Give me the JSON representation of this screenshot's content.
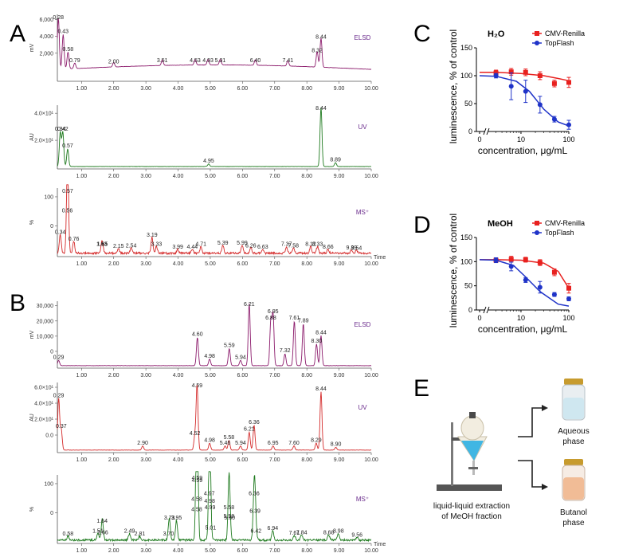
{
  "panels": {
    "a_label": "A",
    "b_label": "B",
    "c_label": "C",
    "d_label": "D",
    "e_label": "E"
  },
  "chart_data": [
    {
      "id": "A-ELSD",
      "type": "line",
      "panel": "A",
      "detector": "ELSD",
      "color": "#8b1a6b",
      "ylabel": "mV",
      "yticks": [
        "2,000",
        "4,000",
        "6,000"
      ],
      "xlim": [
        0,
        10
      ],
      "xticks": [
        "1.00",
        "2.00",
        "3.00",
        "4.00",
        "5.00",
        "6.00",
        "7.00",
        "8.00",
        "9.00",
        "10.00"
      ],
      "peaks": [
        {
          "t": "0.28",
          "rt": 0.28,
          "h": 0.92
        },
        {
          "t": "0.43",
          "rt": 0.43,
          "h": 0.62
        },
        {
          "t": "0.58",
          "rt": 0.58,
          "h": 0.3
        },
        {
          "t": "0.79",
          "rt": 0.79,
          "h": 0.1
        },
        {
          "t": "2.00",
          "rt": 2.0,
          "h": 0.08
        },
        {
          "t": "3.51",
          "rt": 3.51,
          "h": 0.1
        },
        {
          "t": "4.53",
          "rt": 4.53,
          "h": 0.1
        },
        {
          "t": "4.93",
          "rt": 4.93,
          "h": 0.1
        },
        {
          "t": "5.31",
          "rt": 5.31,
          "h": 0.1
        },
        {
          "t": "6.40",
          "rt": 6.4,
          "h": 0.1
        },
        {
          "t": "7.41",
          "rt": 7.41,
          "h": 0.1
        },
        {
          "t": "8.32",
          "rt": 8.32,
          "h": 0.28
        },
        {
          "t": "8.44",
          "rt": 8.44,
          "h": 0.52
        }
      ]
    },
    {
      "id": "A-UV",
      "type": "line",
      "panel": "A",
      "detector": "UV",
      "color": "#1e7a1e",
      "ylabel": "AU",
      "yticks": [
        "2.0×10¹",
        "4.0×10¹"
      ],
      "xlim": [
        0,
        10
      ],
      "xticks": [
        "1.00",
        "2.00",
        "3.00",
        "4.00",
        "5.00",
        "6.00",
        "7.00",
        "8.00",
        "9.00",
        "10.00"
      ],
      "peaks": [
        {
          "t": "0.34",
          "rt": 0.34,
          "h": 0.55
        },
        {
          "t": "0.42",
          "rt": 0.42,
          "h": 0.55
        },
        {
          "t": "0.57",
          "rt": 0.57,
          "h": 0.28
        },
        {
          "t": "4.95",
          "rt": 4.95,
          "h": 0.04
        },
        {
          "t": "8.44",
          "rt": 8.44,
          "h": 0.95
        },
        {
          "t": "8.89",
          "rt": 8.89,
          "h": 0.06
        }
      ]
    },
    {
      "id": "A-MS",
      "type": "line",
      "panel": "A",
      "detector": "MS⁺",
      "color": "#d42a2a",
      "ylabel": "%",
      "yticks": [
        "0",
        "100"
      ],
      "xlim": [
        0,
        10
      ],
      "xunit": "Time",
      "xticks": [
        "1.00",
        "2.00",
        "3.00",
        "4.00",
        "5.00",
        "6.00",
        "7.00",
        "8.00",
        "9.00",
        "10.00"
      ],
      "peaks": [
        {
          "t": "0.34",
          "rt": 0.34,
          "h": 0.28
        },
        {
          "t": "0.56",
          "rt": 0.56,
          "h": 0.6
        },
        {
          "t": "0.57",
          "rt": 0.57,
          "h": 0.95
        },
        {
          "t": "0.76",
          "rt": 0.76,
          "h": 0.18
        },
        {
          "t": "1.63",
          "rt": 1.63,
          "h": 0.1
        },
        {
          "t": "1.65",
          "rt": 1.65,
          "h": 0.1
        },
        {
          "t": "2.15",
          "rt": 2.15,
          "h": 0.07
        },
        {
          "t": "2.54",
          "rt": 2.54,
          "h": 0.08
        },
        {
          "t": "3.19",
          "rt": 3.19,
          "h": 0.24
        },
        {
          "t": "3.33",
          "rt": 3.33,
          "h": 0.1
        },
        {
          "t": "3.99",
          "rt": 3.99,
          "h": 0.06
        },
        {
          "t": "4.44",
          "rt": 4.44,
          "h": 0.06
        },
        {
          "t": "4.71",
          "rt": 4.71,
          "h": 0.1
        },
        {
          "t": "5.39",
          "rt": 5.39,
          "h": 0.12
        },
        {
          "t": "5.99",
          "rt": 5.99,
          "h": 0.12
        },
        {
          "t": "6.26",
          "rt": 6.26,
          "h": 0.08
        },
        {
          "t": "6.63",
          "rt": 6.63,
          "h": 0.06
        },
        {
          "t": "7.37",
          "rt": 7.37,
          "h": 0.1
        },
        {
          "t": "7.58",
          "rt": 7.58,
          "h": 0.08
        },
        {
          "t": "8.12",
          "rt": 8.12,
          "h": 0.1
        },
        {
          "t": "8.33",
          "rt": 8.33,
          "h": 0.1
        },
        {
          "t": "8.66",
          "rt": 8.66,
          "h": 0.06
        },
        {
          "t": "9.39",
          "rt": 9.39,
          "h": 0.05
        },
        {
          "t": "9.54",
          "rt": 9.54,
          "h": 0.04
        }
      ]
    },
    {
      "id": "B-ELSD",
      "type": "line",
      "panel": "B",
      "detector": "ELSD",
      "color": "#8b1a6b",
      "ylabel": "mV",
      "yticks": [
        "0",
        "10,000",
        "20,000",
        "30,000"
      ],
      "xlim": [
        0,
        10
      ],
      "xticks": [
        "1.00",
        "2.00",
        "3.00",
        "4.00",
        "5.00",
        "6.00",
        "7.00",
        "8.00",
        "9.00",
        "10.00"
      ],
      "peaks": [
        {
          "t": "0.29",
          "rt": 0.29,
          "h": 0.08
        },
        {
          "t": "4.60",
          "rt": 4.6,
          "h": 0.43
        },
        {
          "t": "4.98",
          "rt": 4.98,
          "h": 0.1
        },
        {
          "t": "5.59",
          "rt": 5.59,
          "h": 0.26
        },
        {
          "t": "5.94",
          "rt": 5.94,
          "h": 0.08
        },
        {
          "t": "6.21",
          "rt": 6.21,
          "h": 0.95
        },
        {
          "t": "6.88",
          "rt": 6.88,
          "h": 0.68
        },
        {
          "t": "6.95",
          "rt": 6.95,
          "h": 0.78
        },
        {
          "t": "7.32",
          "rt": 7.32,
          "h": 0.18
        },
        {
          "t": "7.61",
          "rt": 7.61,
          "h": 0.68
        },
        {
          "t": "7.89",
          "rt": 7.89,
          "h": 0.64
        },
        {
          "t": "8.30",
          "rt": 8.3,
          "h": 0.33
        },
        {
          "t": "8.44",
          "rt": 8.44,
          "h": 0.46
        }
      ]
    },
    {
      "id": "B-UV",
      "type": "line",
      "panel": "B",
      "detector": "UV",
      "color": "#d42a2a",
      "ylabel": "AU",
      "yticks": [
        "0.0",
        "2.0×10¹",
        "4.0×10¹",
        "6.0×10¹"
      ],
      "xlim": [
        0,
        10
      ],
      "xticks": [
        "1.00",
        "2.00",
        "3.00",
        "4.00",
        "5.00",
        "6.00",
        "7.00",
        "8.00",
        "9.00",
        "10.00"
      ],
      "peaks": [
        {
          "t": "0.29",
          "rt": 0.29,
          "h": 0.75
        },
        {
          "t": "0.37",
          "rt": 0.37,
          "h": 0.3
        },
        {
          "t": "2.90",
          "rt": 2.9,
          "h": 0.06
        },
        {
          "t": "4.52",
          "rt": 4.52,
          "h": 0.2
        },
        {
          "t": "4.59",
          "rt": 4.59,
          "h": 0.95
        },
        {
          "t": "4.98",
          "rt": 4.98,
          "h": 0.1
        },
        {
          "t": "5.46",
          "rt": 5.46,
          "h": 0.06
        },
        {
          "t": "5.58",
          "rt": 5.58,
          "h": 0.14
        },
        {
          "t": "5.94",
          "rt": 5.94,
          "h": 0.06
        },
        {
          "t": "6.21",
          "rt": 6.21,
          "h": 0.26
        },
        {
          "t": "6.36",
          "rt": 6.36,
          "h": 0.36
        },
        {
          "t": "6.95",
          "rt": 6.95,
          "h": 0.06
        },
        {
          "t": "7.60",
          "rt": 7.6,
          "h": 0.06
        },
        {
          "t": "8.29",
          "rt": 8.29,
          "h": 0.1
        },
        {
          "t": "8.44",
          "rt": 8.44,
          "h": 0.85
        },
        {
          "t": "8.90",
          "rt": 8.9,
          "h": 0.04
        }
      ]
    },
    {
      "id": "B-MS",
      "type": "line",
      "panel": "B",
      "detector": "MS⁺",
      "color": "#1e7a1e",
      "ylabel": "%",
      "yticks": [
        "0",
        "100"
      ],
      "xlim": [
        0,
        10
      ],
      "xunit": "Time",
      "xticks": [
        "1.00",
        "2.00",
        "3.00",
        "4.00",
        "5.00",
        "6.00",
        "7.00",
        "8.00",
        "9.00",
        "10.00"
      ],
      "peaks": [
        {
          "t": "0.58",
          "rt": 0.58,
          "h": 0.06
        },
        {
          "t": "1.51",
          "rt": 1.51,
          "h": 0.1
        },
        {
          "t": "1.64",
          "rt": 1.64,
          "h": 0.25
        },
        {
          "t": "1.66",
          "rt": 1.66,
          "h": 0.08
        },
        {
          "t": "2.49",
          "rt": 2.49,
          "h": 0.1
        },
        {
          "t": "2.81",
          "rt": 2.81,
          "h": 0.06
        },
        {
          "t": "3.70",
          "rt": 3.7,
          "h": 0.06
        },
        {
          "t": "3.73",
          "rt": 3.73,
          "h": 0.3
        },
        {
          "t": "3.95",
          "rt": 3.95,
          "h": 0.3
        },
        {
          "t": "4.58",
          "rt": 4.58,
          "h": 0.42
        },
        {
          "t": "4.58",
          "rt": 4.58,
          "h": 0.58
        },
        {
          "t": "4.59",
          "rt": 4.59,
          "h": 0.95
        },
        {
          "t": "4.59",
          "rt": 4.59,
          "h": 0.86
        },
        {
          "t": "4.97",
          "rt": 4.97,
          "h": 0.66
        },
        {
          "t": "4.98",
          "rt": 4.98,
          "h": 0.55
        },
        {
          "t": "4.99",
          "rt": 4.99,
          "h": 0.45
        },
        {
          "t": "5.01",
          "rt": 5.01,
          "h": 0.15
        },
        {
          "t": "5.58",
          "rt": 5.58,
          "h": 0.32
        },
        {
          "t": "5.58",
          "rt": 5.58,
          "h": 0.45
        },
        {
          "t": "5.60",
          "rt": 5.6,
          "h": 0.3
        },
        {
          "t": "6.36",
          "rt": 6.36,
          "h": 0.66
        },
        {
          "t": "6.39",
          "rt": 6.39,
          "h": 0.4
        },
        {
          "t": "6.42",
          "rt": 6.42,
          "h": 0.1
        },
        {
          "t": "6.94",
          "rt": 6.94,
          "h": 0.14
        },
        {
          "t": "7.61",
          "rt": 7.61,
          "h": 0.07
        },
        {
          "t": "7.84",
          "rt": 7.84,
          "h": 0.08
        },
        {
          "t": "8.68",
          "rt": 8.68,
          "h": 0.08
        },
        {
          "t": "8.98",
          "rt": 8.98,
          "h": 0.1
        },
        {
          "t": "9.56",
          "rt": 9.56,
          "h": 0.04
        }
      ]
    },
    {
      "id": "C",
      "type": "scatter",
      "panel": "C",
      "title": "H₂O",
      "xlabel": "concentration, μg/mL",
      "ylabel": "luminescence, % of control",
      "xscale": "log",
      "xticks": [
        "0",
        "10",
        "100"
      ],
      "yticks": [
        "0",
        "50",
        "100",
        "150"
      ],
      "ylim": [
        0,
        150
      ],
      "series": [
        {
          "name": "CMV-Renilla",
          "color": "#e8211f",
          "marker": "square",
          "x": [
            3,
            6.25,
            12.5,
            25,
            50,
            100
          ],
          "y": [
            105,
            107,
            106,
            100,
            86,
            88
          ],
          "err": [
            5,
            6,
            6,
            7,
            6,
            9
          ],
          "fit": [
            [
              0,
              106
            ],
            [
              3,
              106
            ],
            [
              10,
              104
            ],
            [
              30,
              100
            ],
            [
              60,
              95
            ],
            [
              100,
              91
            ]
          ]
        },
        {
          "name": "TopFlash",
          "color": "#1f33c8",
          "marker": "circle",
          "x": [
            3,
            6.25,
            12.5,
            25,
            50,
            100
          ],
          "y": [
            100,
            81,
            72,
            48,
            22,
            12
          ],
          "err": [
            4,
            24,
            20,
            15,
            5,
            8
          ],
          "fit": [
            [
              0,
              100
            ],
            [
              3,
              99
            ],
            [
              8,
              90
            ],
            [
              15,
              72
            ],
            [
              30,
              40
            ],
            [
              60,
              17
            ],
            [
              100,
              10
            ]
          ]
        }
      ]
    },
    {
      "id": "D",
      "type": "scatter",
      "panel": "D",
      "title": "MeOH",
      "xlabel": "concentration, μg/mL",
      "ylabel": "luminescence, % of control",
      "xscale": "log",
      "xticks": [
        "0",
        "10",
        "100"
      ],
      "yticks": [
        "0",
        "50",
        "100",
        "150"
      ],
      "ylim": [
        0,
        150
      ],
      "series": [
        {
          "name": "CMV-Renilla",
          "color": "#e8211f",
          "marker": "square",
          "x": [
            3,
            6.25,
            12.5,
            25,
            50,
            100
          ],
          "y": [
            103,
            105,
            104,
            98,
            78,
            45
          ],
          "err": [
            4,
            6,
            5,
            6,
            7,
            10
          ],
          "fit": [
            [
              0,
              104
            ],
            [
              3,
              104
            ],
            [
              10,
              103
            ],
            [
              30,
              97
            ],
            [
              60,
              80
            ],
            [
              100,
              45
            ]
          ]
        },
        {
          "name": "TopFlash",
          "color": "#1f33c8",
          "marker": "circle",
          "x": [
            3,
            6.25,
            12.5,
            25,
            50,
            100
          ],
          "y": [
            103,
            90,
            62,
            47,
            32,
            23
          ],
          "err": [
            5,
            9,
            5,
            12,
            4,
            4
          ],
          "fit": [
            [
              0,
              104
            ],
            [
              3,
              103
            ],
            [
              7,
              92
            ],
            [
              12,
              70
            ],
            [
              25,
              38
            ],
            [
              60,
              12
            ],
            [
              100,
              8
            ]
          ]
        }
      ]
    }
  ],
  "panel_e": {
    "funnel_caption_1": "liquid-liquid extraction",
    "funnel_caption_2": "of MeOH fraction",
    "top_phase_1": "Aqueous",
    "top_phase_2": "phase",
    "bottom_phase_1": "Butanol",
    "bottom_phase_2": "phase",
    "top_color": "#cfe7f0",
    "bottom_color": "#f1bc96"
  }
}
